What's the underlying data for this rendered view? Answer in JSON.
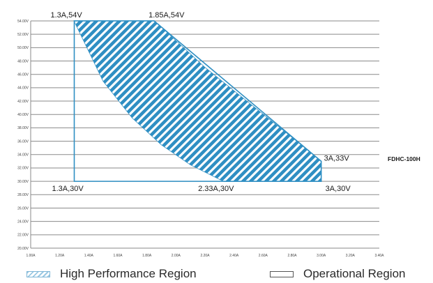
{
  "chart_data": {
    "type": "area",
    "x_ticks": [
      "1.00A",
      "1.20A",
      "1.40A",
      "1.60A",
      "1.80A",
      "2.00A",
      "2.20A",
      "2.40A",
      "2.60A",
      "2.80A",
      "3.00A",
      "3.20A",
      "3.40A"
    ],
    "y_ticks": [
      "20.00V",
      "22.00V",
      "24.00V",
      "26.00V",
      "28.00V",
      "30.00V",
      "32.00V",
      "34.00V",
      "36.00V",
      "38.00V",
      "40.00V",
      "42.00V",
      "44.00V",
      "46.00V",
      "48.00V",
      "50.00V",
      "52.00V",
      "54.00V"
    ],
    "xlim": [
      1.0,
      3.4
    ],
    "ylim": [
      20,
      54
    ],
    "grid": true,
    "operational_region": {
      "points": [
        [
          1.3,
          54
        ],
        [
          1.3,
          30
        ],
        [
          3.0,
          30
        ],
        [
          3.0,
          33
        ],
        [
          1.85,
          54
        ]
      ]
    },
    "high_performance_region": {
      "points": [
        [
          1.3,
          54
        ],
        [
          1.85,
          54
        ],
        [
          2.0,
          51
        ],
        [
          2.2,
          47
        ],
        [
          2.4,
          43.5
        ],
        [
          2.6,
          40
        ],
        [
          2.8,
          36.5
        ],
        [
          3.0,
          33
        ],
        [
          3.0,
          30
        ],
        [
          2.33,
          30
        ],
        [
          2.1,
          32.5
        ],
        [
          1.9,
          35.5
        ],
        [
          1.7,
          39.5
        ],
        [
          1.5,
          45
        ],
        [
          1.4,
          49.5
        ],
        [
          1.3,
          54
        ]
      ],
      "fill": "#2f8fc3"
    },
    "annotations": [
      {
        "text": "1.3A,54V",
        "x": 1.3,
        "y": 54
      },
      {
        "text": "1.85A,54V",
        "x": 1.85,
        "y": 54
      },
      {
        "text": "3A,33V",
        "x": 3.0,
        "y": 33
      },
      {
        "text": "1.3A,30V",
        "x": 1.3,
        "y": 30
      },
      {
        "text": "2.33A,30V",
        "x": 2.33,
        "y": 30
      },
      {
        "text": "3A,30V",
        "x": 3.0,
        "y": 30
      }
    ],
    "model_label": "FDHC-100H",
    "legend": [
      {
        "label": "High Performance Region",
        "style": "hatched"
      },
      {
        "label": "Operational Region",
        "style": "outline"
      }
    ]
  }
}
